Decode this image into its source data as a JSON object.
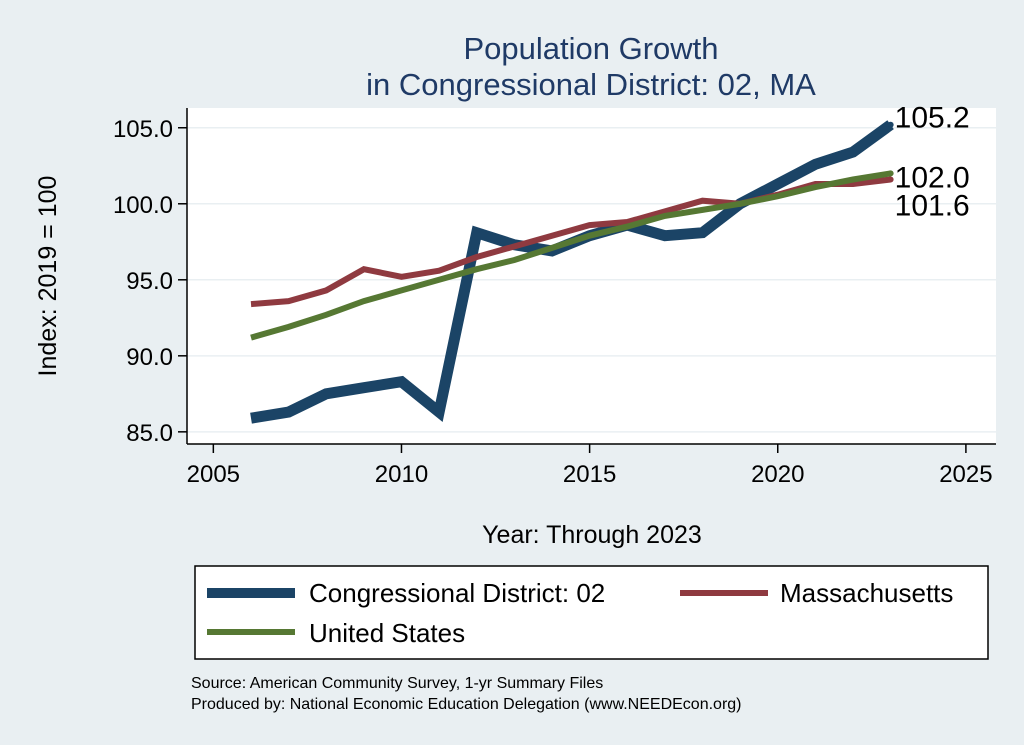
{
  "chart_data": {
    "type": "line",
    "title_lines": [
      "Population Growth",
      "in Congressional District: 02, MA"
    ],
    "xlabel": "Year: Through 2023",
    "ylabel": "Index: 2019 = 100",
    "xlim": [
      2004.3,
      2025.8
    ],
    "ylim": [
      84.2,
      106.3
    ],
    "x_ticks": [
      2005,
      2010,
      2015,
      2020,
      2025
    ],
    "y_ticks": [
      85,
      90,
      95,
      100,
      105
    ],
    "y_tick_labels": [
      "85.0",
      "90.0",
      "95.0",
      "100.0",
      "105.0"
    ],
    "x": [
      2006,
      2007,
      2008,
      2009,
      2010,
      2011,
      2012,
      2013,
      2014,
      2015,
      2016,
      2017,
      2018,
      2019,
      2020,
      2021,
      2022,
      2023
    ],
    "series": [
      {
        "name": "Congressional District: 02",
        "color": "#1b4466",
        "values": [
          85.9,
          86.3,
          87.5,
          87.9,
          88.3,
          86.3,
          98.1,
          97.3,
          96.9,
          97.9,
          98.6,
          97.9,
          98.1,
          100.0,
          101.3,
          102.6,
          103.4,
          105.2
        ],
        "end_label": "105.2"
      },
      {
        "name": "Massachusetts",
        "color": "#8f3a40",
        "values": [
          93.4,
          93.6,
          94.3,
          95.7,
          95.2,
          95.6,
          96.5,
          97.2,
          97.9,
          98.6,
          98.8,
          99.5,
          100.2,
          100.0,
          100.6,
          101.3,
          101.3,
          101.6
        ],
        "end_label": "101.6"
      },
      {
        "name": "United States",
        "color": "#567833",
        "values": [
          91.2,
          91.9,
          92.7,
          93.6,
          94.3,
          95.0,
          95.7,
          96.3,
          97.1,
          97.9,
          98.5,
          99.2,
          99.6,
          100.0,
          100.5,
          101.1,
          101.6,
          102.0
        ],
        "end_label": "102.0"
      }
    ],
    "legend": {
      "placement": "bottom",
      "items": [
        "Congressional District: 02",
        "Massachusetts",
        "United States"
      ]
    },
    "source_lines": [
      "Source: American Community Survey, 1-yr Summary Files",
      "Produced by: National Economic Education Delegation (www.NEEDEcon.org)"
    ]
  }
}
